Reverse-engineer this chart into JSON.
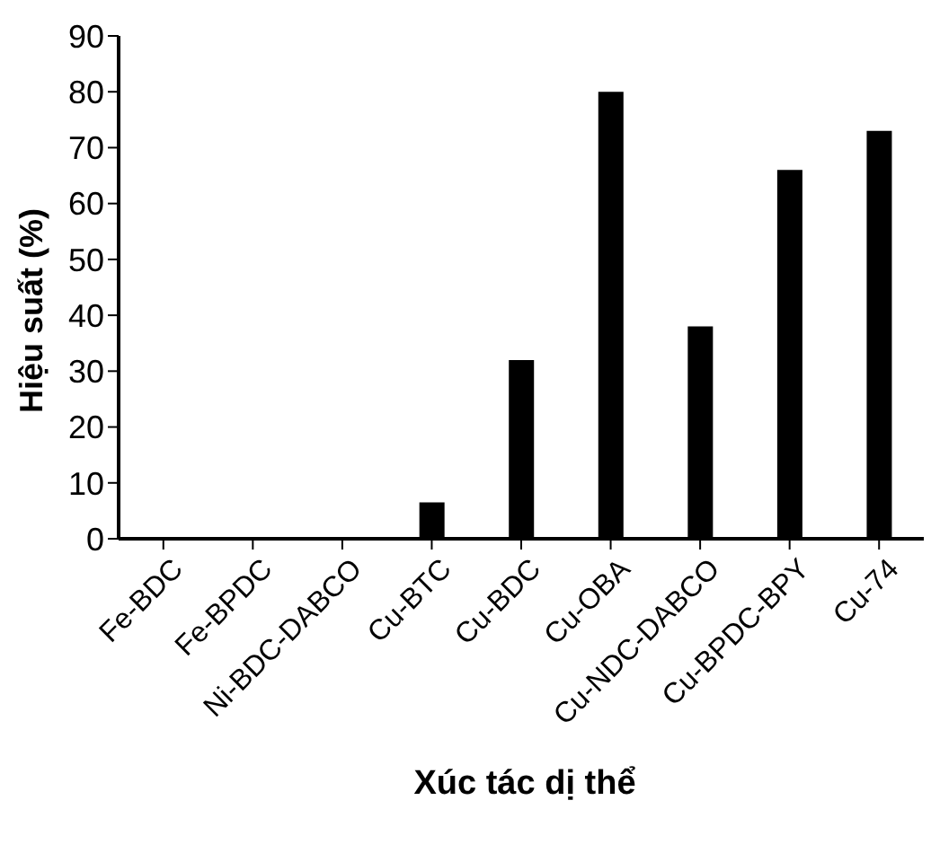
{
  "chart_data": {
    "type": "bar",
    "ylabel": "Hiệu suất (%)",
    "xlabel": "Xúc tác dị thể",
    "categories": [
      "Fe-BDC",
      "Fe-BPDC",
      "Ni-BDC-DABCO",
      "Cu-BTC",
      "Cu-BDC",
      "Cu-OBA",
      "Cu-NDC-DABCO",
      "Cu-BPDC-BPY",
      "Cu-74"
    ],
    "values": [
      0,
      0,
      0,
      6.5,
      32,
      80,
      38,
      66,
      73
    ],
    "color": "#000000",
    "ylim": [
      0,
      90
    ],
    "yticks": [
      0,
      10,
      20,
      30,
      40,
      50,
      60,
      70,
      80,
      90
    ],
    "grid": false,
    "legend": false
  }
}
